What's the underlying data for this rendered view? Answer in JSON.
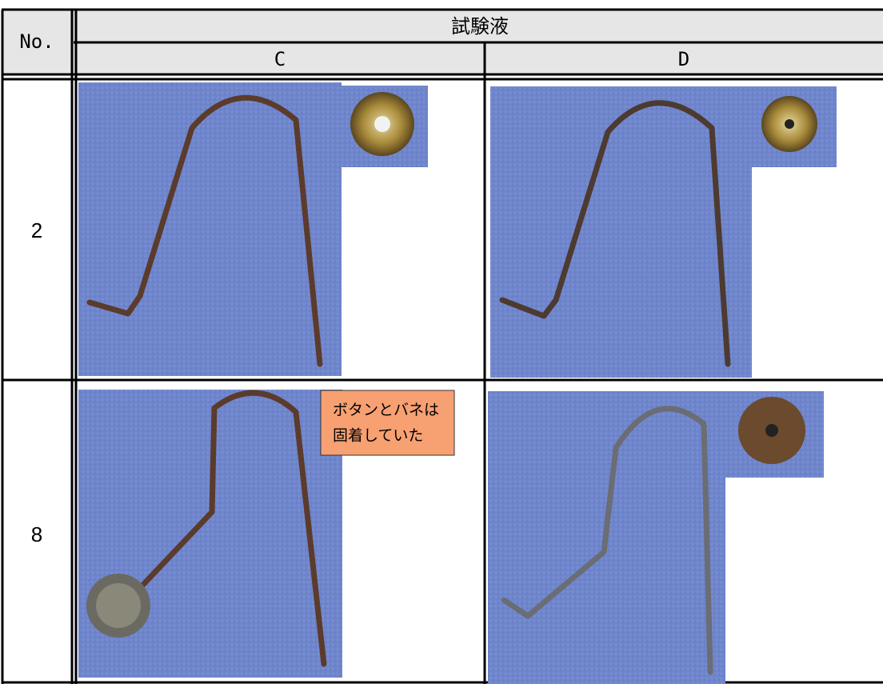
{
  "table": {
    "header": {
      "no": "No.",
      "group": "試験液",
      "columns": [
        "C",
        "D"
      ]
    },
    "rows": [
      {
        "no": "2"
      },
      {
        "no": "8",
        "note": [
          "ボタンとバネは",
          "固着していた"
        ]
      }
    ]
  }
}
